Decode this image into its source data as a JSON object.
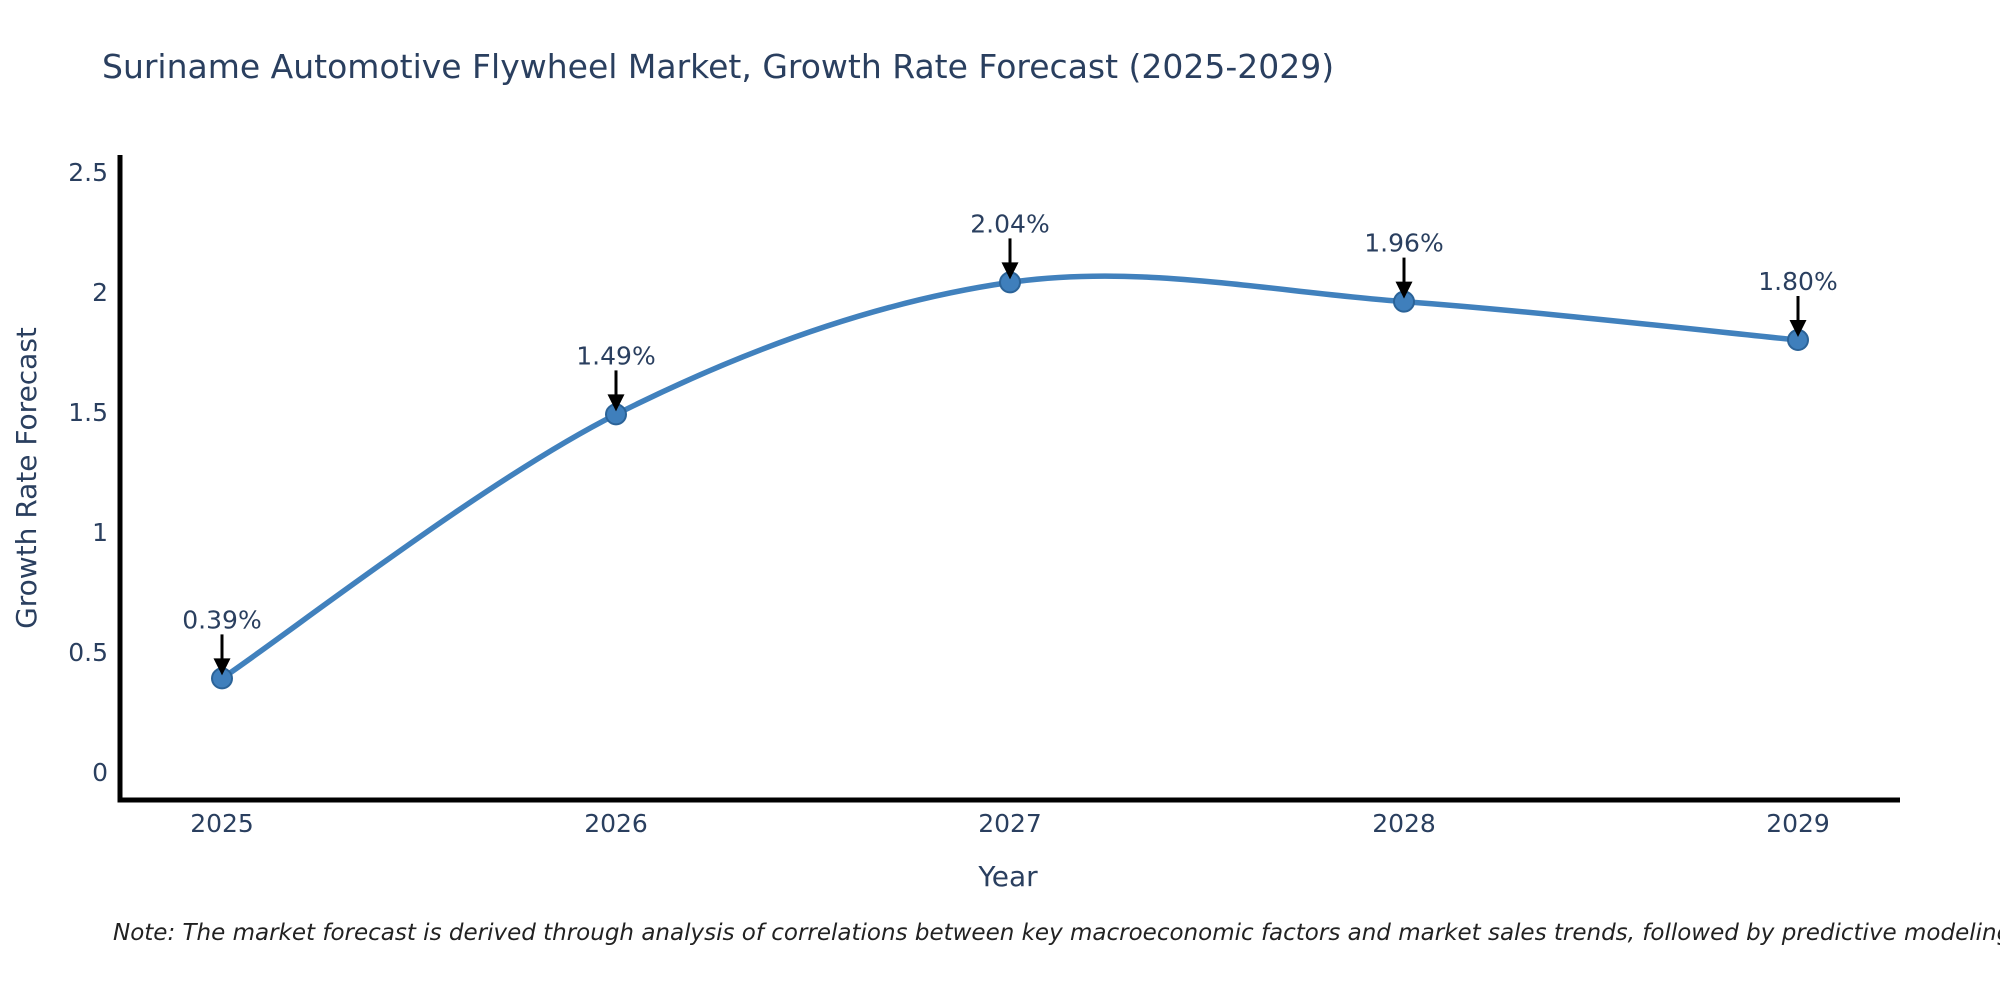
{
  "title": "Suriname Automotive Flywheel Market, Growth Rate Forecast (2025-2029)",
  "note": "Note: The market forecast is derived through analysis of correlations between key macroeconomic factors and market sales trends, followed by predictive modeling to project future sales",
  "chart_data": {
    "type": "line",
    "title": "Suriname Automotive Flywheel Market, Growth Rate Forecast (2025-2029)",
    "line_shape": "spline",
    "x": [
      2025,
      2026,
      2027,
      2028,
      2029
    ],
    "series": [
      {
        "name": "Growth Rate Forecast",
        "values": [
          0.39,
          1.49,
          2.04,
          1.96,
          1.8
        ]
      }
    ],
    "point_labels": [
      "0.39%",
      "1.49%",
      "2.04%",
      "1.96%",
      "1.80%"
    ],
    "xlabel": "Year",
    "ylabel": "Growth Rate Forecast",
    "y_ticks": [
      0,
      0.5,
      1,
      1.5,
      2,
      2.5
    ],
    "y_tick_labels": [
      "0",
      "0.5",
      "1",
      "1.5",
      "2",
      "2.5"
    ],
    "ylim": [
      -0.12,
      2.57
    ],
    "grid": false,
    "legend_position": "none",
    "colors": {
      "line": "#4181bd",
      "marker_fill": "#3f7fbc",
      "marker_edge": "#2b6398",
      "axis_line": "#000000",
      "text": "#2a3f5f",
      "annotation_arrow": "#000000",
      "background": "#ffffff"
    }
  }
}
